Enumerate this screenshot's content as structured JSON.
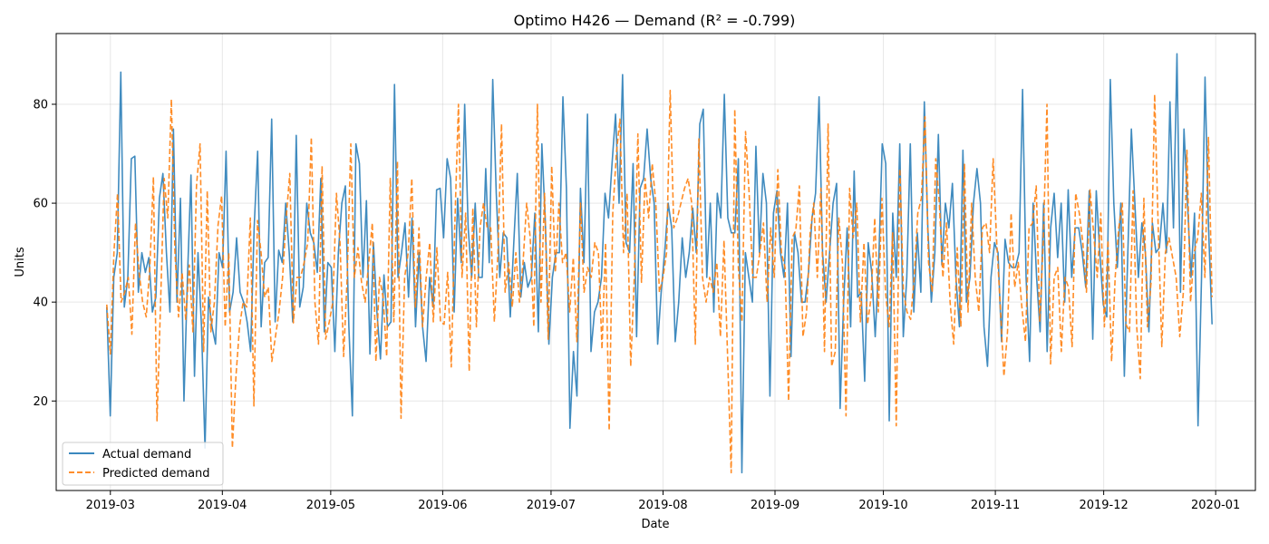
{
  "chart_data": {
    "type": "line",
    "title": "Optimo H426 — Demand (R² = -0.799)",
    "xlabel": "Date",
    "ylabel": "Units",
    "x_axis": "date",
    "xlim": [
      "2019-02-14",
      "2020-01-12"
    ],
    "ylim": [
      1.9,
      94.3
    ],
    "x_ticks": [
      "2019-03-01",
      "2019-04-01",
      "2019-05-01",
      "2019-06-01",
      "2019-07-01",
      "2019-08-01",
      "2019-09-01",
      "2019-10-01",
      "2019-11-01",
      "2019-12-01",
      "2020-01-01"
    ],
    "x_tick_labels": [
      "2019-03",
      "2019-04",
      "2019-05",
      "2019-06",
      "2019-07",
      "2019-08",
      "2019-09",
      "2019-10",
      "2019-11",
      "2019-12",
      "2020-01"
    ],
    "y_ticks": [
      20,
      40,
      60,
      80
    ],
    "y_tick_labels": [
      "20",
      "40",
      "60",
      "80"
    ],
    "grid": true,
    "legend_position": "lower-left",
    "x_start": "2019-02-28",
    "x_end": "2019-12-31",
    "series": [
      {
        "name": "Actual demand",
        "color": "#1f77b4",
        "style": "solid",
        "values": [
          39,
          17,
          45,
          50,
          86.5,
          39,
          45,
          69,
          69.5,
          42,
          50,
          46,
          49,
          38,
          41,
          61,
          66,
          50,
          38,
          75,
          40,
          61,
          20,
          45,
          65.7,
          25,
          50,
          35,
          10.5,
          41,
          35,
          31.5,
          50,
          47,
          70.5,
          38,
          42,
          53,
          42,
          40,
          36,
          30,
          55,
          70.5,
          35,
          48,
          49,
          77,
          36,
          50.5,
          48,
          60,
          50,
          36,
          73.7,
          39,
          43,
          60,
          54,
          52,
          46,
          65,
          34,
          48,
          47,
          30,
          50,
          60,
          63.5,
          35,
          17,
          72,
          68,
          45,
          60.5,
          29.5,
          52,
          38,
          28.5,
          45.5,
          35,
          36,
          84,
          45,
          50,
          56,
          41,
          57,
          35,
          50,
          35,
          28,
          45,
          39,
          62.7,
          63,
          53,
          69,
          65,
          38,
          61,
          48,
          80,
          55,
          45,
          60,
          45,
          45,
          67,
          48,
          85,
          62,
          45,
          54,
          53,
          37,
          52,
          66,
          41,
          48,
          43,
          45,
          58,
          34,
          72,
          56,
          31.5,
          45,
          50,
          50,
          81.5,
          63,
          14.5,
          30,
          21,
          63,
          48,
          78,
          30,
          38,
          40,
          45,
          62,
          57,
          68,
          78,
          60,
          86,
          52,
          50,
          68,
          33,
          63,
          65,
          75,
          65,
          60,
          31.5,
          42,
          50,
          60,
          55,
          32,
          40,
          53,
          45,
          50,
          59,
          50,
          76,
          79,
          45,
          60,
          38,
          62,
          57,
          82,
          57,
          54,
          54,
          69,
          5.5,
          50,
          45,
          40,
          71.5,
          50,
          66,
          60,
          21,
          58,
          62.5,
          50,
          45,
          60,
          29,
          54,
          50,
          40,
          40,
          46,
          57,
          62,
          81.5,
          50,
          40,
          50,
          60,
          64,
          18.5,
          40,
          55,
          35,
          66.5,
          41,
          42,
          24,
          52,
          46,
          33,
          48,
          72,
          68,
          16,
          58,
          45,
          72,
          33,
          45,
          72,
          38,
          54,
          42,
          80.5,
          55,
          40,
          50,
          73.9,
          47.5,
          60,
          55,
          64,
          45,
          35,
          70.7,
          40,
          45,
          60,
          67,
          60,
          35,
          27,
          45,
          52,
          50,
          32,
          52.7,
          48,
          47,
          47,
          50,
          83,
          45,
          28,
          60,
          45,
          34,
          60,
          30,
          55,
          62,
          49,
          60,
          40,
          62.7,
          45,
          55,
          55,
          50,
          43,
          62.5,
          32.5,
          62.5,
          50,
          39.5,
          37,
          85,
          60,
          47,
          60,
          25,
          50,
          75,
          60,
          45,
          56,
          50,
          34,
          56,
          50,
          51,
          60,
          50,
          80.5,
          55,
          90.2,
          42,
          75,
          60,
          45,
          58,
          15,
          45,
          85.5,
          55,
          35.5
        ]
      },
      {
        "name": "Predicted demand",
        "color": "#ff7f0e",
        "style": "dashed",
        "values": [
          39.5,
          29.5,
          50,
          62,
          40,
          42,
          45,
          33.5,
          56,
          46,
          40,
          37,
          47,
          65.3,
          16,
          40,
          65,
          57,
          81,
          50,
          37,
          46,
          36.5,
          47.5,
          34,
          63.5,
          72,
          30,
          62.5,
          34,
          40,
          55.5,
          61.5,
          35,
          50,
          10.5,
          25,
          35,
          40,
          39,
          57,
          19,
          56.5,
          50,
          41,
          43,
          28,
          33,
          38,
          45,
          57,
          66,
          35.8,
          45,
          45,
          48,
          52,
          73.3,
          40,
          31.5,
          67.5,
          32.5,
          36,
          40,
          62,
          52,
          29,
          45,
          72,
          45,
          51,
          44,
          40,
          48,
          56,
          28,
          45,
          41,
          29,
          65,
          36,
          68.5,
          16.5,
          45,
          50,
          65,
          39,
          55,
          35,
          45,
          52,
          36,
          51,
          36,
          35.5,
          46,
          26.9,
          56,
          80,
          45,
          58,
          26,
          59,
          35,
          55,
          60,
          55,
          55,
          36,
          50,
          76,
          42,
          48,
          39,
          50,
          40,
          48,
          60,
          53,
          35,
          80,
          40,
          62,
          32.5,
          67.5,
          46,
          60,
          48,
          50,
          38,
          49,
          32,
          60,
          42,
          47,
          45,
          52,
          50,
          30.5,
          52,
          14,
          58,
          70,
          77,
          50,
          62,
          27,
          45,
          74,
          44,
          65,
          57,
          68,
          60,
          42,
          45,
          50,
          82.8,
          55,
          57,
          60,
          63,
          65,
          60,
          31.5,
          73,
          45,
          40,
          45,
          42,
          48,
          33,
          52.5,
          29,
          5.5,
          79,
          47,
          36,
          74.5,
          62,
          45,
          45,
          50,
          56,
          40,
          55,
          45,
          66.8,
          50,
          47,
          20,
          53,
          54.5,
          63.5,
          33,
          38,
          54,
          60,
          45,
          63,
          30,
          76,
          27,
          30,
          57,
          48,
          17,
          63,
          53,
          60,
          36,
          52,
          35.5,
          41,
          57,
          38,
          61,
          42,
          35,
          54,
          15,
          67,
          42,
          38,
          36.5,
          45,
          58,
          61,
          77.5,
          48,
          42,
          69,
          60,
          45,
          56,
          40,
          31.5,
          51,
          35,
          68,
          38,
          60,
          45,
          38,
          55,
          56,
          50,
          69,
          52,
          39,
          25,
          34,
          58,
          43,
          48,
          39,
          32,
          55,
          56,
          63.5,
          36,
          53,
          80,
          27.5,
          45,
          47,
          30,
          45,
          43,
          31,
          62,
          58,
          52,
          42,
          62.7,
          54,
          45,
          58,
          35,
          52.5,
          28,
          45,
          55,
          60,
          35.5,
          34,
          62.5,
          35,
          24.5,
          61,
          35,
          44,
          82,
          55,
          31,
          50,
          53,
          49,
          45,
          33,
          42,
          70.7,
          40,
          50,
          53,
          62,
          45,
          73.3,
          41
        ]
      }
    ]
  }
}
